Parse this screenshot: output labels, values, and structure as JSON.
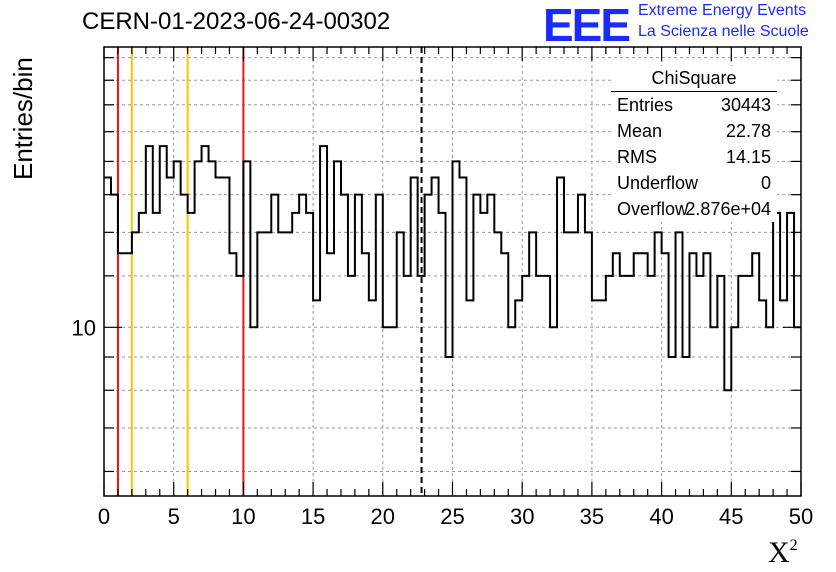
{
  "title": "CERN-01-2023-06-24-00302",
  "logo": {
    "mark": "EEE",
    "line1": "Extreme Energy Events",
    "line2": "La Scienza nelle Scuole"
  },
  "stats": {
    "title": "ChiSquare",
    "rows": [
      {
        "label": "Entries",
        "value": "30443"
      },
      {
        "label": "Mean",
        "value": "22.78"
      },
      {
        "label": "RMS",
        "value": "14.15"
      },
      {
        "label": "Underflow",
        "value": "0"
      },
      {
        "label": "Overflow",
        "value": "2.876e+04"
      }
    ]
  },
  "colors": {
    "red": "#e8141a",
    "yellow": "#ffc400",
    "hist": "#000000",
    "grid": "#9a9a9a"
  },
  "chart_data": {
    "type": "histogram",
    "xlabel": "X²",
    "ylabel": "Entries/bin",
    "xlim": [
      0,
      50
    ],
    "ylim": [
      5.5,
      27
    ],
    "yscale": "log",
    "grid": true,
    "bin_width": 0.5,
    "x_ticks": [
      0,
      5,
      10,
      15,
      20,
      25,
      30,
      35,
      40,
      45,
      50
    ],
    "y_tick_labels": [
      10
    ],
    "vertical_lines": [
      {
        "x": 1,
        "color": "red",
        "style": "solid"
      },
      {
        "x": 2,
        "color": "yellow",
        "style": "solid"
      },
      {
        "x": 6,
        "color": "yellow",
        "style": "solid"
      },
      {
        "x": 10,
        "color": "red",
        "style": "solid"
      },
      {
        "x": 22.78,
        "color": "black",
        "style": "dashed"
      }
    ],
    "values": [
      17,
      16,
      13,
      13,
      14,
      15,
      19,
      15,
      19,
      17,
      18,
      16,
      15,
      18,
      19,
      18,
      17,
      17,
      13,
      12,
      18,
      10,
      14,
      14,
      16,
      14,
      14,
      15,
      16,
      15,
      11,
      19,
      13,
      18,
      16,
      12,
      16,
      13,
      11,
      16,
      10,
      10,
      14,
      12,
      17,
      12,
      16,
      17,
      15,
      9,
      18,
      17,
      11,
      16,
      15,
      16,
      14,
      13,
      10,
      11,
      12,
      14,
      12,
      12,
      10,
      17,
      14,
      14,
      16,
      14,
      11,
      11,
      12,
      13,
      12,
      12,
      13,
      13,
      12,
      14,
      13,
      9,
      14,
      9,
      13,
      12,
      13,
      10,
      12,
      8,
      10,
      12,
      12,
      13,
      11,
      10,
      15,
      11,
      15,
      10
    ]
  }
}
